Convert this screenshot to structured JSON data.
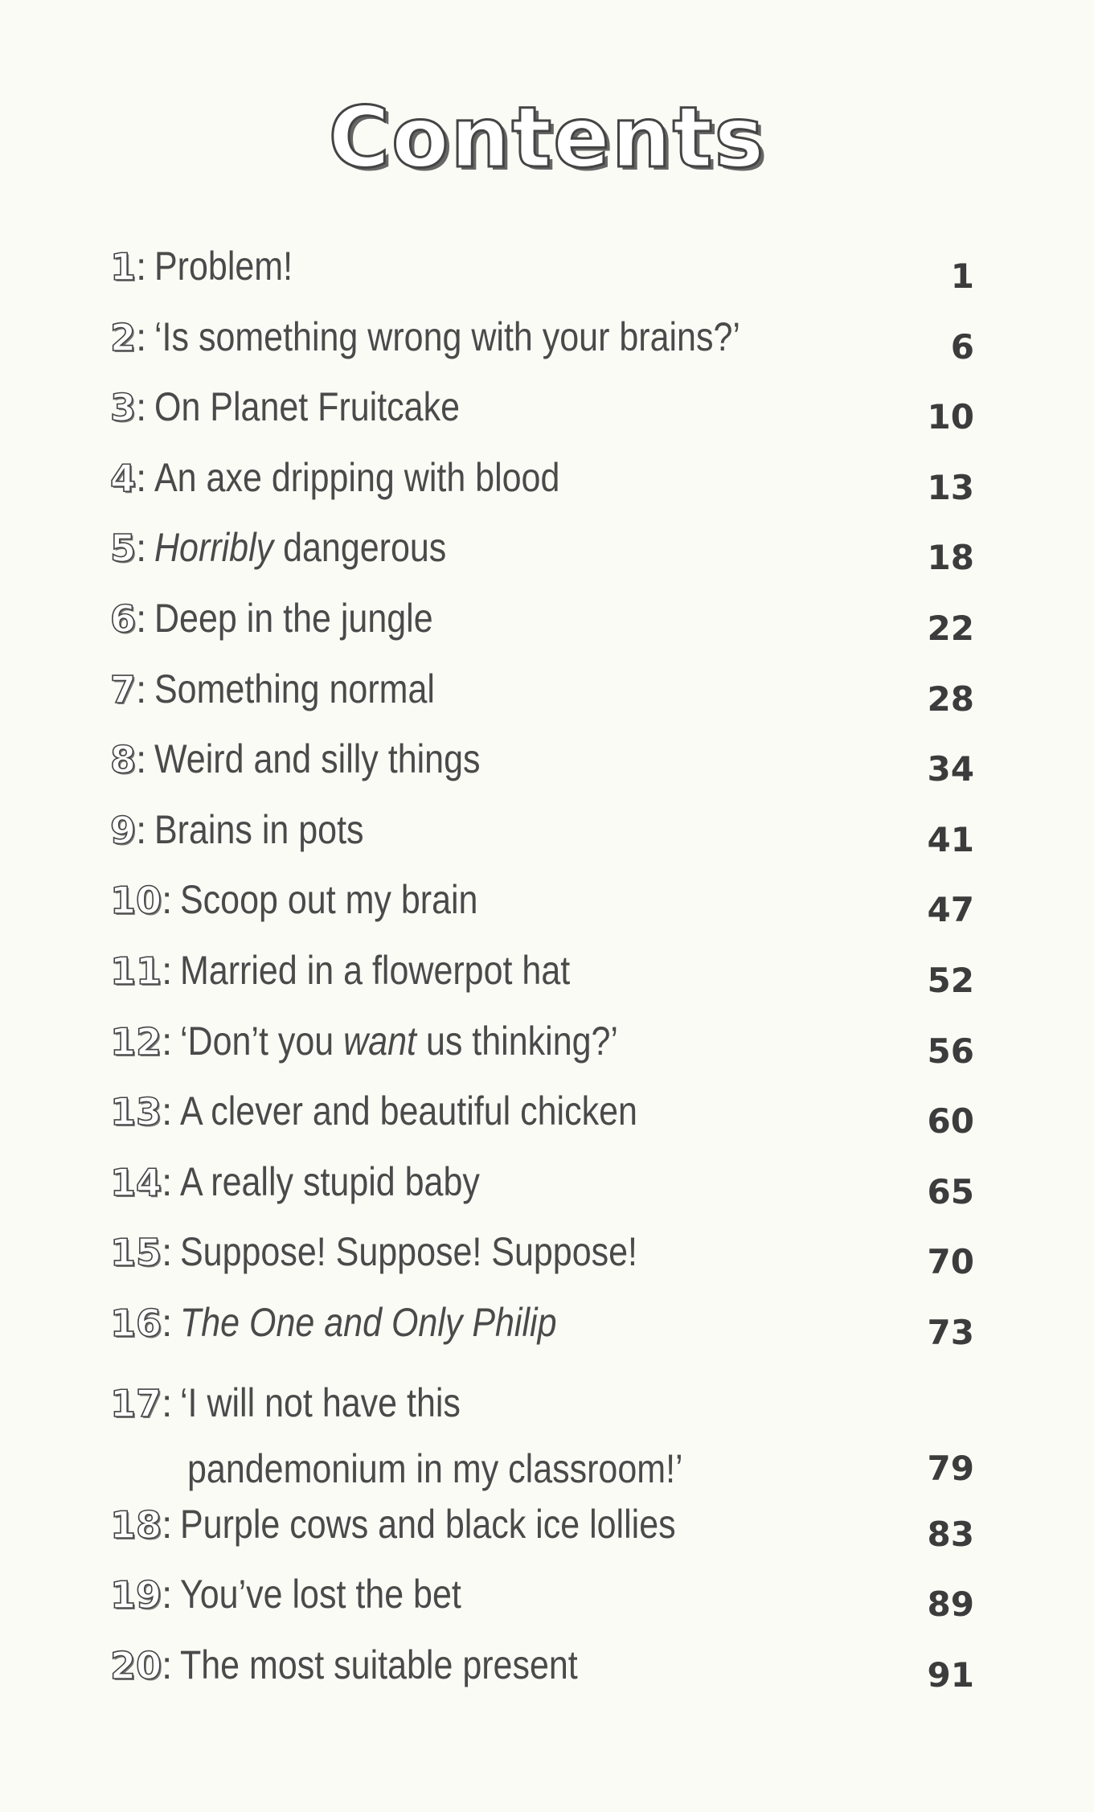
{
  "title": "Contents",
  "chapters": [
    {
      "number": "1",
      "title": [
        {
          "text": "Problem!",
          "italic": false
        }
      ],
      "page": "1"
    },
    {
      "number": "2",
      "title": [
        {
          "text": "‘Is something wrong with your brains?’",
          "italic": false
        }
      ],
      "page": "6"
    },
    {
      "number": "3",
      "title": [
        {
          "text": "On Planet Fruitcake",
          "italic": false
        }
      ],
      "page": "10"
    },
    {
      "number": "4",
      "title": [
        {
          "text": "An axe dripping with blood",
          "italic": false
        }
      ],
      "page": "13"
    },
    {
      "number": "5",
      "title": [
        {
          "text": "Horribly",
          "italic": true
        },
        {
          "text": " dangerous",
          "italic": false
        }
      ],
      "page": "18"
    },
    {
      "number": "6",
      "title": [
        {
          "text": "Deep in the jungle",
          "italic": false
        }
      ],
      "page": "22"
    },
    {
      "number": "7",
      "title": [
        {
          "text": "Something normal",
          "italic": false
        }
      ],
      "page": "28"
    },
    {
      "number": "8",
      "title": [
        {
          "text": "Weird and silly things",
          "italic": false
        }
      ],
      "page": "34"
    },
    {
      "number": "9",
      "title": [
        {
          "text": "Brains in pots",
          "italic": false
        }
      ],
      "page": "41"
    },
    {
      "number": "10",
      "title": [
        {
          "text": "Scoop out my brain",
          "italic": false
        }
      ],
      "page": "47"
    },
    {
      "number": "11",
      "title": [
        {
          "text": "Married in a flowerpot hat",
          "italic": false
        }
      ],
      "page": "52"
    },
    {
      "number": "12",
      "title": [
        {
          "text": "‘Don’t you ",
          "italic": false
        },
        {
          "text": "want",
          "italic": true
        },
        {
          "text": " us thinking?’",
          "italic": false
        }
      ],
      "page": "56"
    },
    {
      "number": "13",
      "title": [
        {
          "text": "A clever and beautiful chicken",
          "italic": false
        }
      ],
      "page": "60"
    },
    {
      "number": "14",
      "title": [
        {
          "text": "A really stupid baby",
          "italic": false
        }
      ],
      "page": "65"
    },
    {
      "number": "15",
      "title": [
        {
          "text": "Suppose! Suppose! Suppose!",
          "italic": false
        }
      ],
      "page": "70"
    },
    {
      "number": "16",
      "title": [
        {
          "text": "The One and Only Philip",
          "italic": true
        }
      ],
      "page": "73"
    },
    {
      "number": "17",
      "title": [
        {
          "text": "‘I will not have this",
          "italic": false
        }
      ],
      "continuation": "pandemonium in my classroom!’",
      "page": "79"
    },
    {
      "number": "18",
      "title": [
        {
          "text": "Purple cows and black ice lollies",
          "italic": false
        }
      ],
      "page": "83"
    },
    {
      "number": "19",
      "title": [
        {
          "text": "You’ve lost the bet",
          "italic": false
        }
      ],
      "page": "89"
    },
    {
      "number": "20",
      "title": [
        {
          "text": "The most suitable present",
          "italic": false
        }
      ],
      "page": "91"
    }
  ]
}
